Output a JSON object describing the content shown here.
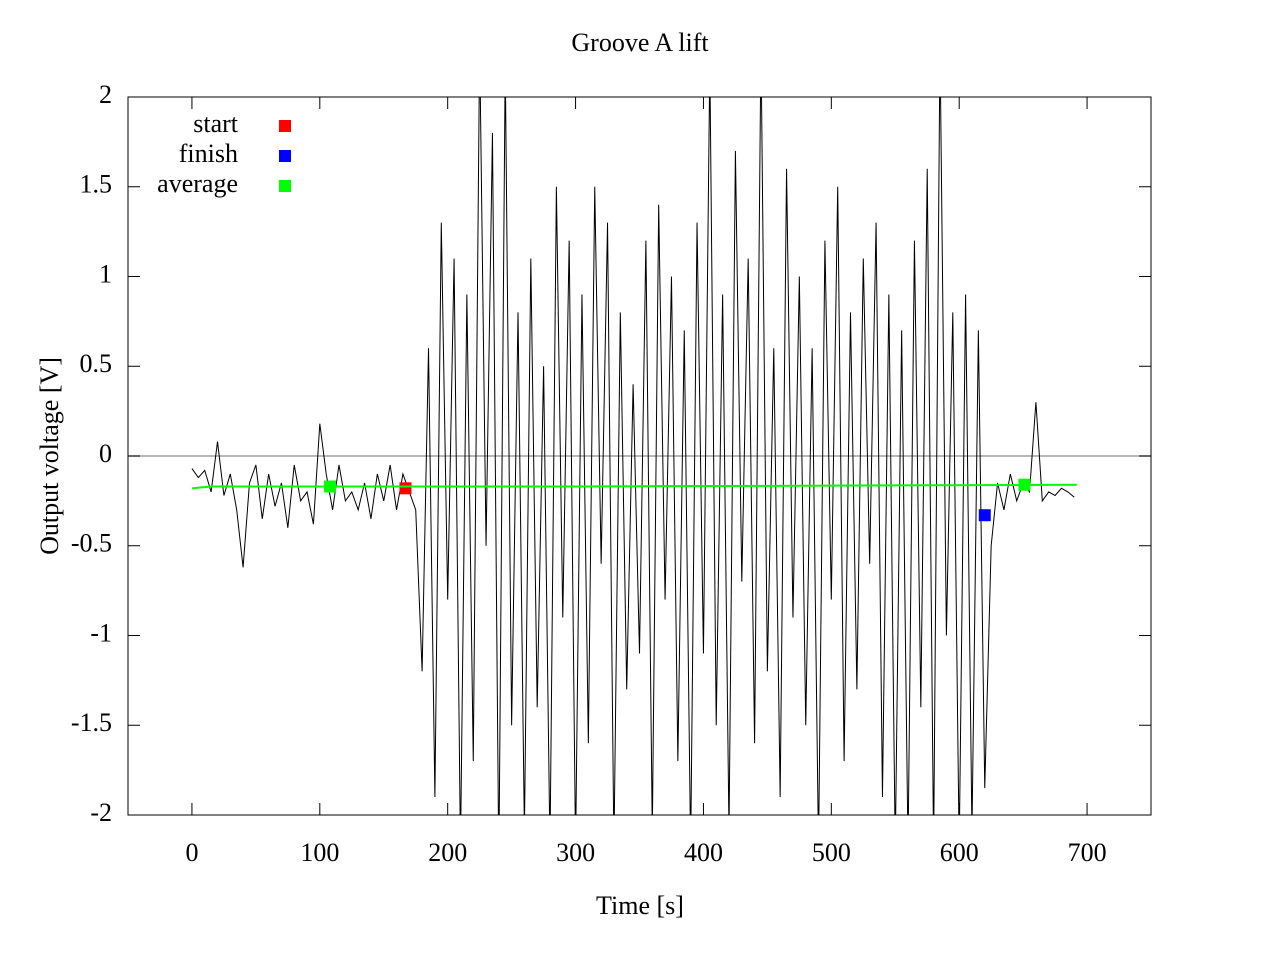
{
  "chart_data": {
    "type": "line",
    "title": "Groove A lift",
    "x_label": "Time [s]",
    "y_label": "Output voltage [V]",
    "xlim": [
      -50,
      750
    ],
    "ylim": [
      -2,
      2
    ],
    "xticks": [
      0,
      100,
      200,
      300,
      400,
      500,
      600,
      700
    ],
    "yticks": [
      -2,
      -1.5,
      -1,
      -0.5,
      0,
      0.5,
      1,
      1.5,
      2
    ],
    "zero_line": true,
    "zero_line_color": "#a0a0a0",
    "legend": "top-left",
    "signal": {
      "color": "#000000",
      "x": [
        0,
        5,
        10,
        15,
        20,
        25,
        30,
        35,
        40,
        45,
        50,
        55,
        60,
        65,
        70,
        75,
        80,
        85,
        90,
        95,
        100,
        105,
        110,
        115,
        120,
        125,
        130,
        135,
        140,
        145,
        150,
        155,
        160,
        165,
        170,
        175,
        180,
        185,
        190,
        195,
        200,
        205,
        210,
        215,
        220,
        225,
        230,
        235,
        240,
        245,
        250,
        255,
        260,
        265,
        270,
        275,
        280,
        285,
        290,
        295,
        300,
        305,
        310,
        315,
        320,
        325,
        330,
        335,
        340,
        345,
        350,
        355,
        360,
        365,
        370,
        375,
        380,
        385,
        390,
        395,
        400,
        405,
        410,
        415,
        420,
        425,
        430,
        435,
        440,
        445,
        450,
        455,
        460,
        465,
        470,
        475,
        480,
        485,
        490,
        495,
        500,
        505,
        510,
        515,
        520,
        525,
        530,
        535,
        540,
        545,
        550,
        555,
        560,
        565,
        570,
        575,
        580,
        585,
        590,
        595,
        600,
        605,
        610,
        615,
        620,
        625,
        630,
        635,
        640,
        645,
        650,
        655,
        660,
        665,
        670,
        675,
        680,
        685,
        690
      ],
      "values": [
        -0.07,
        -0.12,
        -0.08,
        -0.2,
        0.08,
        -0.22,
        -0.1,
        -0.3,
        -0.62,
        -0.15,
        -0.05,
        -0.35,
        -0.1,
        -0.28,
        -0.15,
        -0.4,
        -0.05,
        -0.25,
        -0.2,
        -0.38,
        0.18,
        -0.1,
        -0.3,
        -0.05,
        -0.25,
        -0.2,
        -0.3,
        -0.15,
        -0.35,
        -0.1,
        -0.25,
        -0.05,
        -0.3,
        -0.1,
        -0.2,
        -0.3,
        -1.2,
        0.6,
        -1.9,
        1.3,
        -0.8,
        1.1,
        -2.2,
        0.9,
        -1.7,
        2.3,
        -0.5,
        1.8,
        -2.3,
        2.2,
        -1.5,
        0.8,
        -2.1,
        1.1,
        -1.4,
        0.5,
        -2.2,
        1.5,
        -0.9,
        1.2,
        -2.2,
        0.9,
        -1.6,
        1.5,
        -0.6,
        1.3,
        -2.2,
        0.8,
        -1.3,
        0.4,
        -1.1,
        1.2,
        -2.1,
        1.4,
        -0.8,
        1.0,
        -1.7,
        0.7,
        -2.2,
        1.3,
        -1.1,
        2.2,
        -1.5,
        0.9,
        -2.1,
        1.7,
        -0.7,
        1.1,
        -1.6,
        2.3,
        -1.2,
        0.6,
        -1.9,
        1.6,
        -0.9,
        1.0,
        -1.5,
        0.6,
        -2.2,
        1.2,
        -0.8,
        1.5,
        -1.7,
        0.8,
        -1.3,
        1.1,
        -0.6,
        1.3,
        -1.9,
        0.9,
        -2.2,
        0.7,
        -2.2,
        1.2,
        -1.4,
        1.6,
        -2.2,
        2.3,
        -1.0,
        0.8,
        -2.2,
        0.9,
        -2.1,
        0.7,
        -1.85,
        -0.5,
        -0.15,
        -0.3,
        -0.1,
        -0.25,
        -0.15,
        -0.2,
        0.3,
        -0.25,
        -0.2,
        -0.22,
        -0.18,
        -0.2,
        -0.23
      ]
    },
    "series": [
      {
        "name": "start",
        "color": "#ff0000",
        "x": [
          167
        ],
        "values": [
          -0.18
        ]
      },
      {
        "name": "finish",
        "color": "#0000ff",
        "x": [
          620
        ],
        "values": [
          -0.33
        ]
      },
      {
        "name": "average",
        "color": "#00ff00",
        "x": [
          108,
          651
        ],
        "values": [
          -0.17,
          -0.16
        ],
        "line_x": [
          0,
          15,
          100,
          300,
          500,
          692
        ],
        "line_values": [
          -0.18,
          -0.17,
          -0.17,
          -0.17,
          -0.165,
          -0.16
        ]
      }
    ]
  }
}
